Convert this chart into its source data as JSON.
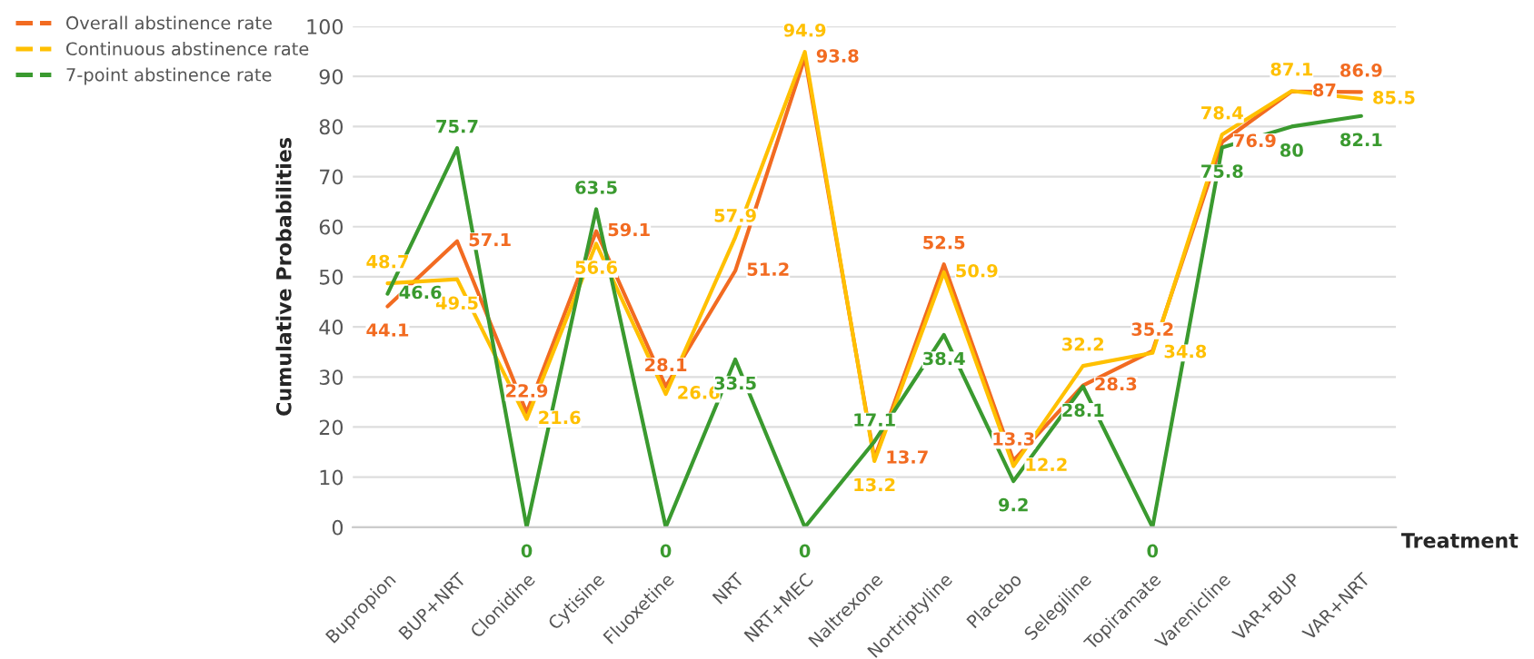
{
  "chart_data": {
    "type": "line",
    "xlabel": "Treatment",
    "ylabel": "Cumulative Probabilities",
    "categories": [
      "Bupropion",
      "BUP+NRT",
      "Clonidine",
      "Cytisine",
      "Fluoxetine",
      "NRT",
      "NRT+MEC",
      "Naltrexone",
      "Nortriptyline",
      "Placebo",
      "Selegiline",
      "Topiramate",
      "Varenicline",
      "VAR+BUP",
      "VAR+NRT"
    ],
    "series": [
      {
        "name": "Overall abstinence rate",
        "color": "#f26b21",
        "values": [
          44.1,
          57.1,
          22.9,
          59.1,
          28.1,
          51.2,
          93.8,
          13.7,
          52.5,
          13.3,
          28.3,
          35.2,
          76.9,
          87,
          86.9
        ]
      },
      {
        "name": "Continuous abstinence rate",
        "color": "#ffc000",
        "values": [
          48.7,
          49.5,
          21.6,
          56.6,
          26.6,
          57.9,
          94.9,
          13.2,
          50.9,
          12.2,
          32.2,
          34.8,
          78.4,
          87.1,
          85.5
        ]
      },
      {
        "name": "7-point abstinence rate",
        "color": "#3a9a2f",
        "values": [
          46.6,
          75.7,
          0,
          63.5,
          0,
          33.5,
          0,
          17.1,
          38.4,
          9.2,
          28.1,
          0,
          75.8,
          80,
          82.1
        ]
      }
    ],
    "ylim": [
      0,
      100
    ],
    "yticks": [
      0,
      10,
      20,
      30,
      40,
      50,
      60,
      70,
      80,
      90,
      100
    ],
    "grid": "y",
    "legend": "top left",
    "data_labels": true,
    "marker": "none",
    "line_style": "solid"
  }
}
